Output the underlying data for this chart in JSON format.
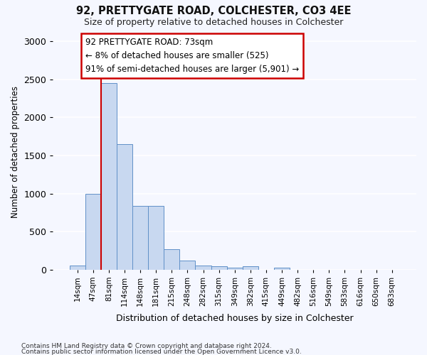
{
  "title1": "92, PRETTYGATE ROAD, COLCHESTER, CO3 4EE",
  "title2": "Size of property relative to detached houses in Colchester",
  "xlabel": "Distribution of detached houses by size in Colchester",
  "ylabel": "Number of detached properties",
  "footer1": "Contains HM Land Registry data © Crown copyright and database right 2024.",
  "footer2": "Contains public sector information licensed under the Open Government Licence v3.0.",
  "categories": [
    "14sqm",
    "47sqm",
    "81sqm",
    "114sqm",
    "148sqm",
    "181sqm",
    "215sqm",
    "248sqm",
    "282sqm",
    "315sqm",
    "349sqm",
    "382sqm",
    "415sqm",
    "449sqm",
    "482sqm",
    "516sqm",
    "549sqm",
    "583sqm",
    "616sqm",
    "650sqm",
    "683sqm"
  ],
  "values": [
    50,
    1000,
    2450,
    1650,
    835,
    835,
    270,
    120,
    55,
    40,
    30,
    40,
    0,
    25,
    0,
    0,
    0,
    0,
    0,
    0,
    0
  ],
  "bar_color": "#c8d8f0",
  "bar_edge_color": "#6090c8",
  "ylim_max": 3100,
  "yticks": [
    0,
    500,
    1000,
    1500,
    2000,
    2500,
    3000
  ],
  "property_line_color": "#cc0000",
  "property_line_x": 1.5,
  "annotation_text": "92 PRETTYGATE ROAD: 73sqm\n← 8% of detached houses are smaller (525)\n91% of semi-detached houses are larger (5,901) →",
  "annotation_box_facecolor": "#ffffff",
  "annotation_box_edgecolor": "#cc0000",
  "background_color": "#f5f7ff"
}
